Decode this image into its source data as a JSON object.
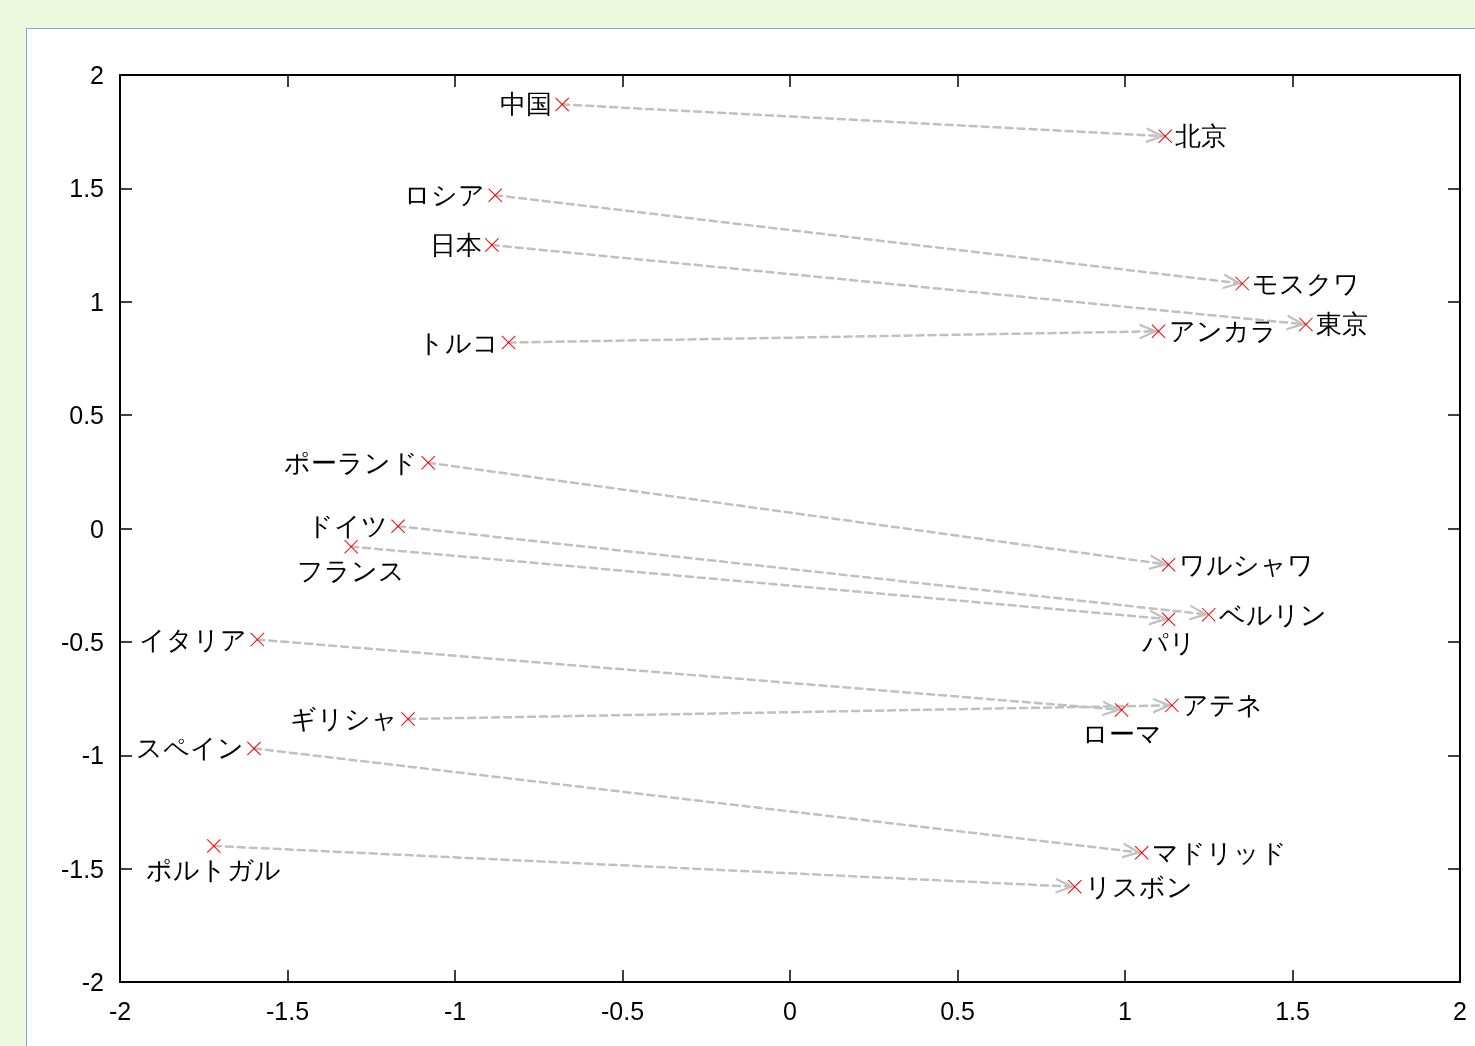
{
  "chart_data": {
    "type": "scatter",
    "xlim": [
      -2,
      2
    ],
    "xticks": [
      -2,
      -1.5,
      -1,
      -0.5,
      0,
      0.5,
      1,
      1.5,
      2
    ],
    "ylim": [
      -2,
      2
    ],
    "yticks": [
      -2,
      -1.5,
      -1,
      -0.5,
      0,
      0.5,
      1,
      1.5,
      2
    ],
    "line_style": "dashed",
    "series": [
      {
        "type": "scatter",
        "color": "#ff0000",
        "marker": "cross",
        "x": [
          -0.68,
          1.12,
          -0.88,
          1.35,
          -0.89,
          1.54,
          -0.84,
          1.1,
          -1.08,
          1.13,
          -1.17,
          1.25,
          -1.31,
          1.13,
          -1.59,
          0.99,
          -1.14,
          1.14,
          -1.6,
          1.05,
          -1.72,
          0.85
        ],
        "values": [
          1.87,
          1.73,
          1.47,
          1.08,
          1.25,
          0.9,
          0.82,
          0.87,
          0.29,
          -0.16,
          0.01,
          -0.38,
          -0.08,
          -0.4,
          -0.49,
          -0.8,
          -0.84,
          -0.78,
          -0.97,
          -1.43,
          -1.4,
          -1.58
        ]
      },
      {
        "type": "line",
        "color": "#c0c0c0",
        "x": [
          -0.68,
          1.12
        ],
        "values": [
          1.87,
          1.73
        ]
      },
      {
        "type": "line",
        "color": "#c0c0c0",
        "x": [
          -0.88,
          1.35
        ],
        "values": [
          1.47,
          1.08
        ]
      },
      {
        "type": "line",
        "color": "#c0c0c0",
        "x": [
          -0.89,
          1.54
        ],
        "values": [
          1.25,
          0.9
        ]
      },
      {
        "type": "line",
        "color": "#c0c0c0",
        "x": [
          -0.84,
          1.1
        ],
        "values": [
          0.82,
          0.87
        ]
      },
      {
        "type": "line",
        "color": "#c0c0c0",
        "x": [
          -1.08,
          1.13
        ],
        "values": [
          0.29,
          -0.16
        ]
      },
      {
        "type": "line",
        "color": "#c0c0c0",
        "x": [
          -1.17,
          1.25
        ],
        "values": [
          0.01,
          -0.38
        ]
      },
      {
        "type": "line",
        "color": "#c0c0c0",
        "x": [
          -1.31,
          1.13
        ],
        "values": [
          -0.08,
          -0.4
        ]
      },
      {
        "type": "line",
        "color": "#c0c0c0",
        "x": [
          -1.59,
          0.99
        ],
        "values": [
          -0.49,
          -0.8
        ]
      },
      {
        "type": "line",
        "color": "#c0c0c0",
        "x": [
          -1.14,
          1.14
        ],
        "values": [
          -0.84,
          -0.78
        ]
      },
      {
        "type": "line",
        "color": "#c0c0c0",
        "x": [
          -1.6,
          1.05
        ],
        "values": [
          -0.97,
          -1.43
        ]
      },
      {
        "type": "line",
        "color": "#c0c0c0",
        "x": [
          -1.72,
          0.85
        ],
        "values": [
          -1.4,
          -1.58
        ]
      }
    ],
    "annotations": [
      {
        "text": "中国",
        "x": -0.68,
        "y": 1.87
      },
      {
        "text": "北京",
        "x": 1.12,
        "y": 1.73
      },
      {
        "text": "ロシア",
        "x": -0.88,
        "y": 1.47
      },
      {
        "text": "モスクワ",
        "x": 1.35,
        "y": 1.08
      },
      {
        "text": "日本",
        "x": -0.89,
        "y": 1.25
      },
      {
        "text": "東京",
        "x": 1.54,
        "y": 0.9
      },
      {
        "text": "トルコ",
        "x": -0.84,
        "y": 0.82
      },
      {
        "text": "アンカラ",
        "x": 1.1,
        "y": 0.87
      },
      {
        "text": "ポーランド",
        "x": -1.08,
        "y": 0.29
      },
      {
        "text": "ワルシャワ",
        "x": 1.13,
        "y": -0.16
      },
      {
        "text": "ドイツ",
        "x": -1.17,
        "y": 0.01
      },
      {
        "text": "ベルリン",
        "x": 1.25,
        "y": -0.38
      },
      {
        "text": "フランス",
        "x": -1.31,
        "y": -0.08
      },
      {
        "text": "パリ",
        "x": 1.13,
        "y": -0.4
      },
      {
        "text": "イタリア",
        "x": -1.59,
        "y": -0.49
      },
      {
        "text": "ローマ",
        "x": 0.99,
        "y": -0.8
      },
      {
        "text": "ギリシャ",
        "x": -1.14,
        "y": -0.84
      },
      {
        "text": "アテネ",
        "x": 1.14,
        "y": -0.78
      },
      {
        "text": "スペイン",
        "x": -1.6,
        "y": -0.97
      },
      {
        "text": "マドリッド",
        "x": 1.05,
        "y": -1.43
      },
      {
        "text": "ポルトガル",
        "x": -1.72,
        "y": -1.4
      },
      {
        "text": "リスボン",
        "x": 0.85,
        "y": -1.58
      }
    ]
  }
}
